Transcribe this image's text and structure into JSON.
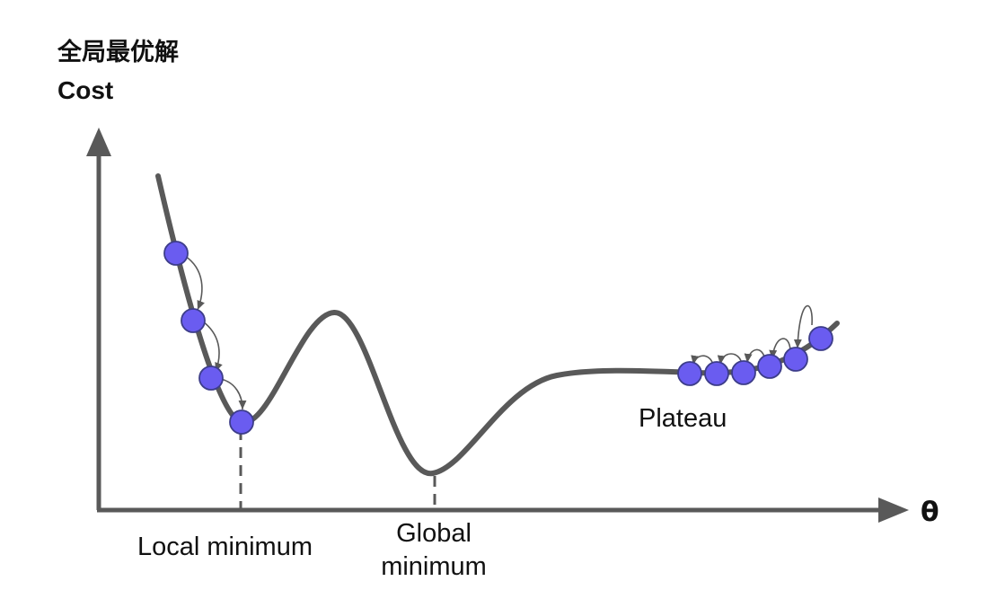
{
  "title": "全局最优解",
  "axes": {
    "y_label": "Cost",
    "x_label": "θ"
  },
  "annotations": {
    "local_minimum": "Local minimum",
    "global_minimum": "Global minimum",
    "plateau": "Plateau"
  },
  "colors": {
    "curve": "#595959",
    "axis": "#595959",
    "ball_fill": "#6a5cf0",
    "ball_stroke": "#3d3d8a",
    "arrow": "#595959"
  }
}
